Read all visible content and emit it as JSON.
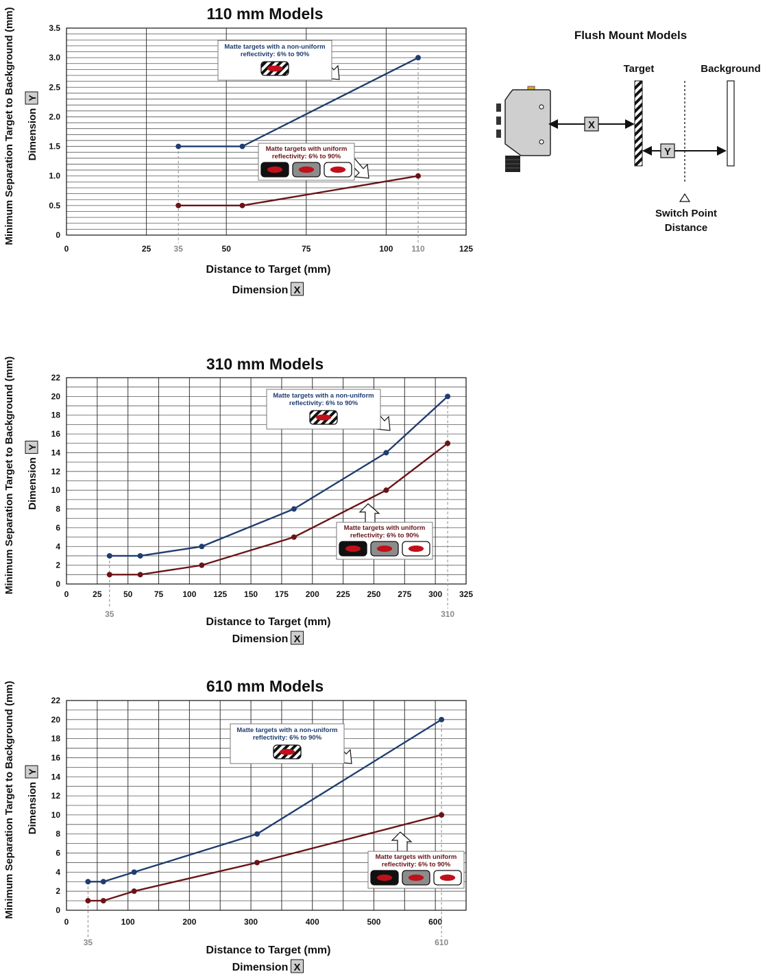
{
  "colors": {
    "nonuniform": "#1f3d6e",
    "uniform": "#6b1418",
    "grid_major": "#333333",
    "grid_minor": "#555555",
    "marker_gray": "#8a8a8a",
    "label_blue": "#1f3d6e",
    "label_red": "#6b1418"
  },
  "icons": {
    "hatched_target": "striped-target-icon",
    "black_target": "black-target-icon",
    "gray_target": "gray-target-icon",
    "white_target": "white-target-icon",
    "arrow": "pointer-arrow-icon"
  },
  "legend": {
    "nonuniform_line1": "Matte targets with a non-uniform",
    "nonuniform_line2": "reflectivity: 6% to 90%",
    "uniform_line1": "Matte targets with uniform",
    "uniform_line2": "reflectivity: 6% to 90%"
  },
  "axis_text": {
    "ylabel_line1": "Minimum Separation Target to Background (mm)",
    "ylabel_line2": "Dimension",
    "ybox": "Y",
    "xlabel_line1": "Distance to Target (mm)",
    "xlabel_line2": "Dimension",
    "xbox": "X"
  },
  "diagram": {
    "title": "Flush Mount Models",
    "target_label": "Target",
    "background_label": "Background",
    "x_box": "X",
    "y_box": "Y",
    "switch_line1": "Switch Point",
    "switch_line2": "Distance"
  },
  "chart_data": [
    {
      "type": "line",
      "title": "110 mm Models",
      "xlim": [
        0,
        125
      ],
      "ylim": [
        0,
        3.5
      ],
      "xticks": [
        "0",
        "25",
        "50",
        "75",
        "100",
        "125"
      ],
      "xtick_values": [
        0,
        25,
        50,
        75,
        100,
        125
      ],
      "xticks_gray": [
        "35",
        "110"
      ],
      "xticks_gray_values": [
        35,
        110
      ],
      "yticks": [
        "0",
        "0.5",
        "1.0",
        "1.5",
        "2.0",
        "2.5",
        "3.0",
        "3.5"
      ],
      "ytick_values": [
        0,
        0.5,
        1,
        1.5,
        2,
        2.5,
        3,
        3.5
      ],
      "series": [
        {
          "key": "nonuniform",
          "points": [
            [
              35,
              1.5
            ],
            [
              55,
              1.5
            ],
            [
              110,
              3.0
            ]
          ]
        },
        {
          "key": "uniform",
          "points": [
            [
              35,
              0.5
            ],
            [
              55,
              0.5
            ],
            [
              110,
              1.0
            ]
          ]
        }
      ]
    },
    {
      "type": "line",
      "title": "310 mm Models",
      "xlim": [
        0,
        325
      ],
      "ylim": [
        0,
        22
      ],
      "xticks": [
        "0",
        "25",
        "50",
        "75",
        "100",
        "125",
        "150",
        "175",
        "200",
        "225",
        "250",
        "275",
        "300",
        "325"
      ],
      "xtick_values": [
        0,
        25,
        50,
        75,
        100,
        125,
        150,
        175,
        200,
        225,
        250,
        275,
        300,
        325
      ],
      "xticks_gray": [
        "35",
        "310"
      ],
      "xticks_gray_values": [
        35,
        310
      ],
      "yticks": [
        "0",
        "2",
        "4",
        "6",
        "8",
        "10",
        "12",
        "14",
        "16",
        "18",
        "20",
        "22"
      ],
      "ytick_values": [
        0,
        2,
        4,
        6,
        8,
        10,
        12,
        14,
        16,
        18,
        20,
        22
      ],
      "series": [
        {
          "key": "nonuniform",
          "points": [
            [
              35,
              3
            ],
            [
              60,
              3
            ],
            [
              110,
              4
            ],
            [
              185,
              8
            ],
            [
              260,
              14
            ],
            [
              310,
              20
            ]
          ]
        },
        {
          "key": "uniform",
          "points": [
            [
              35,
              1
            ],
            [
              60,
              1
            ],
            [
              110,
              2
            ],
            [
              185,
              5
            ],
            [
              260,
              10
            ],
            [
              310,
              15
            ]
          ]
        }
      ]
    },
    {
      "type": "line",
      "title": "610 mm Models",
      "xlim": [
        0,
        650
      ],
      "ylim": [
        0,
        22
      ],
      "xticks": [
        "0",
        "100",
        "200",
        "300",
        "400",
        "500",
        "600"
      ],
      "xtick_values": [
        0,
        100,
        200,
        300,
        400,
        500,
        600
      ],
      "xticks_gray": [
        "35",
        "610"
      ],
      "xticks_gray_values": [
        35,
        610
      ],
      "yticks": [
        "0",
        "2",
        "4",
        "6",
        "8",
        "10",
        "12",
        "14",
        "16",
        "18",
        "20",
        "22"
      ],
      "ytick_values": [
        0,
        2,
        4,
        6,
        8,
        10,
        12,
        14,
        16,
        18,
        20,
        22
      ],
      "series": [
        {
          "key": "nonuniform",
          "points": [
            [
              35,
              3
            ],
            [
              60,
              3
            ],
            [
              110,
              4
            ],
            [
              310,
              8
            ],
            [
              610,
              20
            ]
          ]
        },
        {
          "key": "uniform",
          "points": [
            [
              35,
              1
            ],
            [
              60,
              1
            ],
            [
              110,
              2
            ],
            [
              310,
              5
            ],
            [
              610,
              10
            ]
          ]
        }
      ]
    }
  ]
}
